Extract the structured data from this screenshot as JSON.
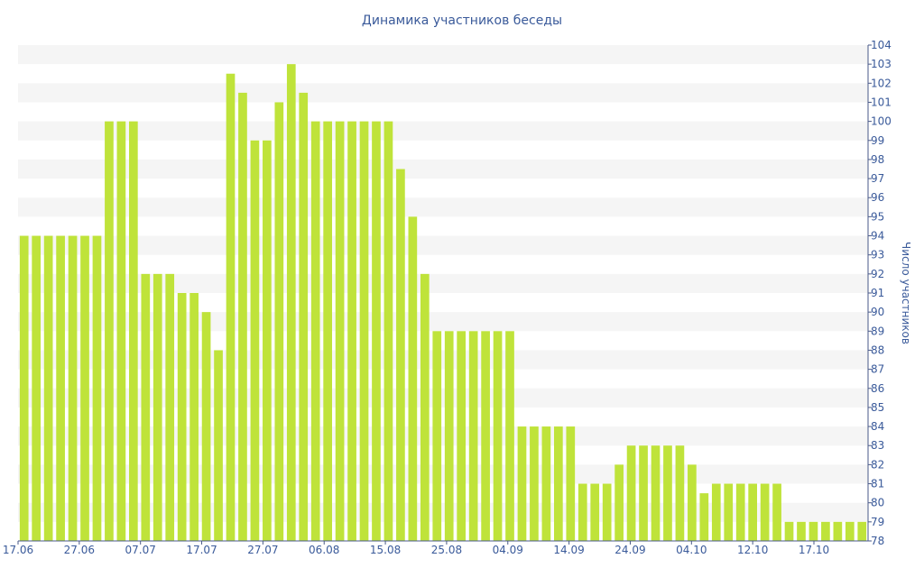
{
  "chart_data": {
    "type": "bar",
    "title": "Динамика участников беседы",
    "xlabel": "",
    "ylabel": "Число участников",
    "ylim": [
      78,
      104
    ],
    "grid": "alternating horizontal bands",
    "bar_color": "#bfe33a",
    "band_color": "#f5f5f5",
    "text_color": "#3a5a9a",
    "x_tick_labels": [
      "17.06",
      "27.06",
      "07.07",
      "17.07",
      "27.07",
      "06.08",
      "15.08",
      "25.08",
      "04.09",
      "14.09",
      "24.09",
      "04.10",
      "12.10",
      "17.10"
    ],
    "y_tick_labels": [
      78,
      79,
      80,
      81,
      82,
      83,
      84,
      85,
      86,
      87,
      88,
      89,
      90,
      91,
      92,
      93,
      94,
      95,
      96,
      97,
      98,
      99,
      100,
      101,
      102,
      103,
      104
    ],
    "values": [
      94,
      94,
      94,
      94,
      94,
      94,
      94,
      100,
      100,
      100,
      92,
      92,
      92,
      91,
      91,
      90,
      88,
      102.5,
      101.5,
      99,
      99,
      101,
      103,
      101.5,
      100,
      100,
      100,
      100,
      100,
      100,
      100,
      97.5,
      95,
      92,
      89,
      89,
      89,
      89,
      89,
      89,
      89,
      84,
      84,
      84,
      84,
      84,
      81,
      81,
      81,
      82,
      83,
      83,
      83,
      83,
      83,
      82,
      80.5,
      81,
      81,
      81,
      81,
      81,
      81,
      79,
      79,
      79,
      79,
      79,
      79,
      79
    ]
  }
}
